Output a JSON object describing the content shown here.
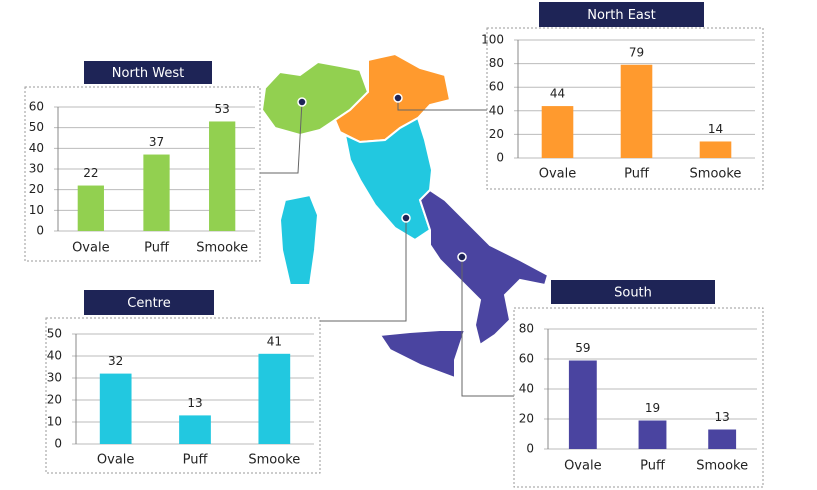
{
  "chart_data": [
    {
      "type": "bar",
      "title": "North West",
      "categories": [
        "Ovale",
        "Puff",
        "Smooke"
      ],
      "values": [
        22,
        37,
        53
      ],
      "color": "#92d050",
      "ylim": [
        0,
        60
      ],
      "yticks": [
        0,
        10,
        20,
        30,
        40,
        50,
        60
      ],
      "grid": true
    },
    {
      "type": "bar",
      "title": "North East",
      "categories": [
        "Ovale",
        "Puff",
        "Smooke"
      ],
      "values": [
        44,
        79,
        14
      ],
      "color": "#ff9a2e",
      "ylim": [
        0,
        100
      ],
      "yticks": [
        0,
        20,
        40,
        60,
        80,
        100
      ],
      "grid": true
    },
    {
      "type": "bar",
      "title": "Centre",
      "categories": [
        "Ovale",
        "Puff",
        "Smooke"
      ],
      "values": [
        32,
        13,
        41
      ],
      "color": "#22c8e0",
      "ylim": [
        0,
        50
      ],
      "yticks": [
        0,
        10,
        20,
        30,
        40,
        50
      ],
      "grid": true
    },
    {
      "type": "bar",
      "title": "South",
      "categories": [
        "Ovale",
        "Puff",
        "Smooke"
      ],
      "values": [
        59,
        19,
        13
      ],
      "color": "#4a44a0",
      "ylim": [
        0,
        80
      ],
      "yticks": [
        0,
        20,
        40,
        60,
        80
      ],
      "grid": true
    }
  ]
}
